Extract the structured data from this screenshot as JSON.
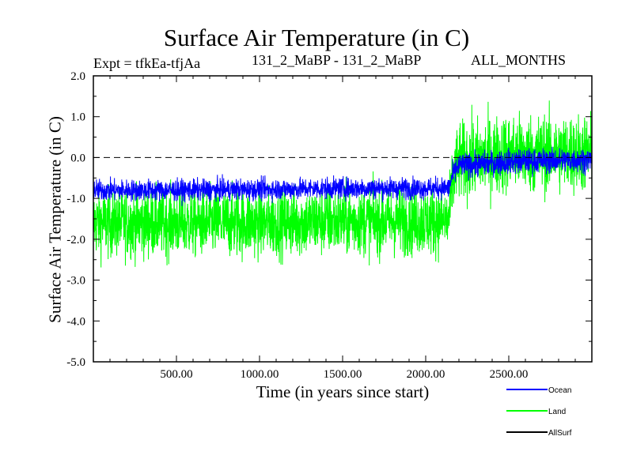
{
  "chart_data": {
    "type": "line",
    "title": "Surface Air Temperature (in C)",
    "subtitle_left": "Expt = tfkEa-tfjAa",
    "subtitle_center": "131_2_MaBP - 131_2_MaBP",
    "subtitle_right": "ALL_MONTHS",
    "xlabel": "Time (in years since start)",
    "ylabel": "Surface Air Temperature (in C)",
    "xlim": [
      0,
      3000
    ],
    "ylim": [
      -5.0,
      2.0
    ],
    "xticks": [
      500,
      1000,
      1500,
      2000,
      2500
    ],
    "xtick_labels": [
      "500.00",
      "1000.00",
      "1500.00",
      "2000.00",
      "2500.00"
    ],
    "yticks": [
      2.0,
      1.0,
      0.0,
      -1.0,
      -2.0,
      -3.0,
      -4.0,
      -5.0
    ],
    "ytick_labels": [
      "2.0",
      "1.0",
      "0.0",
      "-1.0",
      "-2.0",
      "-3.0",
      "-4.0",
      "-5.0"
    ],
    "reference_line": 0.0,
    "grid": false,
    "legend_position": "bottom-right outside",
    "series": [
      {
        "name": "Ocean",
        "color": "#0000ff",
        "x": [
          0,
          500,
          1000,
          1500,
          2000,
          2140,
          2160,
          2200,
          2500,
          3000
        ],
        "values": [
          -0.8,
          -0.8,
          -0.78,
          -0.75,
          -0.75,
          -0.75,
          -0.45,
          -0.2,
          -0.1,
          -0.05
        ]
      },
      {
        "name": "Land",
        "color": "#00ff00",
        "x": [
          0,
          500,
          1000,
          1500,
          2000,
          2140,
          2160,
          2200,
          2500,
          3000
        ],
        "values": [
          -1.6,
          -1.6,
          -1.6,
          -1.55,
          -1.55,
          -1.55,
          -0.6,
          -0.1,
          0.1,
          0.1
        ]
      },
      {
        "name": "AllSurf",
        "color": "#000000",
        "x": [],
        "values": []
      }
    ]
  }
}
